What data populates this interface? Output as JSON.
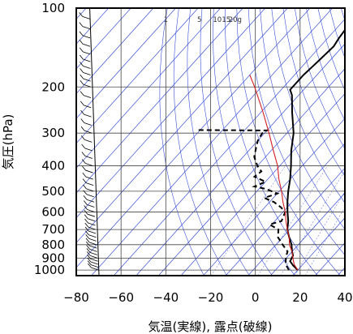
{
  "chart_data": {
    "type": "line",
    "title": "",
    "xlabel": "気温(実線), 露点(破線)",
    "ylabel": "気圧(hPa)",
    "xlim": [
      -80,
      40
    ],
    "ylim": [
      1050,
      100
    ],
    "y_scale": "log",
    "x_ticks": [
      "−80",
      "−60",
      "−40",
      "−20",
      "0",
      "20",
      "40"
    ],
    "y_ticks": [
      "100",
      "200",
      "300",
      "400",
      "500",
      "600",
      "700",
      "800",
      "900",
      "1000"
    ],
    "mixing_ratio_labels": [
      "1",
      "5",
      "10",
      "15",
      "20g"
    ],
    "series": [
      {
        "role": "temperature",
        "style": "solid",
        "color": "#000000",
        "points": [
          {
            "p": 1000,
            "t": 20
          },
          {
            "p": 960,
            "t": 16
          },
          {
            "p": 925,
            "t": 13
          },
          {
            "p": 880,
            "t": 12
          },
          {
            "p": 850,
            "t": 10
          },
          {
            "p": 800,
            "t": 7
          },
          {
            "p": 750,
            "t": 3
          },
          {
            "p": 700,
            "t": -1
          },
          {
            "p": 650,
            "t": -4
          },
          {
            "p": 600,
            "t": -8
          },
          {
            "p": 550,
            "t": -12
          },
          {
            "p": 500,
            "t": -16
          },
          {
            "p": 450,
            "t": -20
          },
          {
            "p": 400,
            "t": -25
          },
          {
            "p": 350,
            "t": -31
          },
          {
            "p": 300,
            "t": -37
          },
          {
            "p": 250,
            "t": -46
          },
          {
            "p": 215,
            "t": -53
          },
          {
            "p": 205,
            "t": -56
          },
          {
            "p": 180,
            "t": -56
          },
          {
            "p": 160,
            "t": -55
          },
          {
            "p": 140,
            "t": -54
          },
          {
            "p": 130,
            "t": -55
          },
          {
            "p": 115,
            "t": -56
          },
          {
            "p": 100,
            "t": -57
          }
        ]
      },
      {
        "role": "dewpoint",
        "style": "dashed",
        "color": "#000000",
        "points": [
          {
            "p": 1000,
            "t": 16
          },
          {
            "p": 960,
            "t": 13
          },
          {
            "p": 925,
            "t": 11
          },
          {
            "p": 880,
            "t": 9
          },
          {
            "p": 850,
            "t": 8
          },
          {
            "p": 800,
            "t": 3
          },
          {
            "p": 750,
            "t": -2
          },
          {
            "p": 700,
            "t": -5
          },
          {
            "p": 670,
            "t": -11
          },
          {
            "p": 650,
            "t": -7
          },
          {
            "p": 600,
            "t": -9
          },
          {
            "p": 575,
            "t": -13
          },
          {
            "p": 550,
            "t": -18
          },
          {
            "p": 530,
            "t": -24
          },
          {
            "p": 510,
            "t": -20
          },
          {
            "p": 490,
            "t": -27
          },
          {
            "p": 480,
            "t": -33
          },
          {
            "p": 460,
            "t": -30
          },
          {
            "p": 440,
            "t": -37
          },
          {
            "p": 420,
            "t": -36
          },
          {
            "p": 400,
            "t": -40
          },
          {
            "p": 370,
            "t": -45
          },
          {
            "p": 340,
            "t": -48
          },
          {
            "p": 320,
            "t": -50
          },
          {
            "p": 300,
            "t": -51
          },
          {
            "p": 293,
            "t": -50
          },
          {
            "p": 292,
            "t": -82
          }
        ]
      },
      {
        "role": "parcel",
        "style": "solid",
        "color": "#d42020",
        "points": [
          {
            "p": 1000,
            "t": 20
          },
          {
            "p": 950,
            "t": 16
          },
          {
            "p": 900,
            "t": 13
          },
          {
            "p": 850,
            "t": 10
          },
          {
            "p": 800,
            "t": 6
          },
          {
            "p": 750,
            "t": 3
          },
          {
            "p": 700,
            "t": -1
          },
          {
            "p": 650,
            "t": -5
          },
          {
            "p": 600,
            "t": -9
          },
          {
            "p": 550,
            "t": -14
          },
          {
            "p": 500,
            "t": -19
          },
          {
            "p": 450,
            "t": -25
          },
          {
            "p": 400,
            "t": -31
          },
          {
            "p": 350,
            "t": -39
          },
          {
            "p": 300,
            "t": -48
          },
          {
            "p": 250,
            "t": -59
          },
          {
            "p": 200,
            "t": -73
          },
          {
            "p": 180,
            "t": -80
          }
        ]
      }
    ],
    "wind_barb_levels": [
      1000,
      975,
      950,
      925,
      900,
      875,
      850,
      825,
      800,
      775,
      750,
      725,
      700,
      675,
      650,
      625,
      600,
      575,
      550,
      525,
      500,
      475,
      450,
      425,
      400,
      375,
      350,
      325,
      300,
      280,
      260,
      240,
      220,
      200,
      190,
      180,
      170,
      160,
      150,
      140,
      130,
      120,
      110,
      100
    ],
    "grid": true,
    "legend": "none",
    "colors": {
      "isotherm": "#3a4fd8",
      "parcel": "#d42020",
      "sounding": "#000000",
      "frame": "#000000"
    }
  }
}
